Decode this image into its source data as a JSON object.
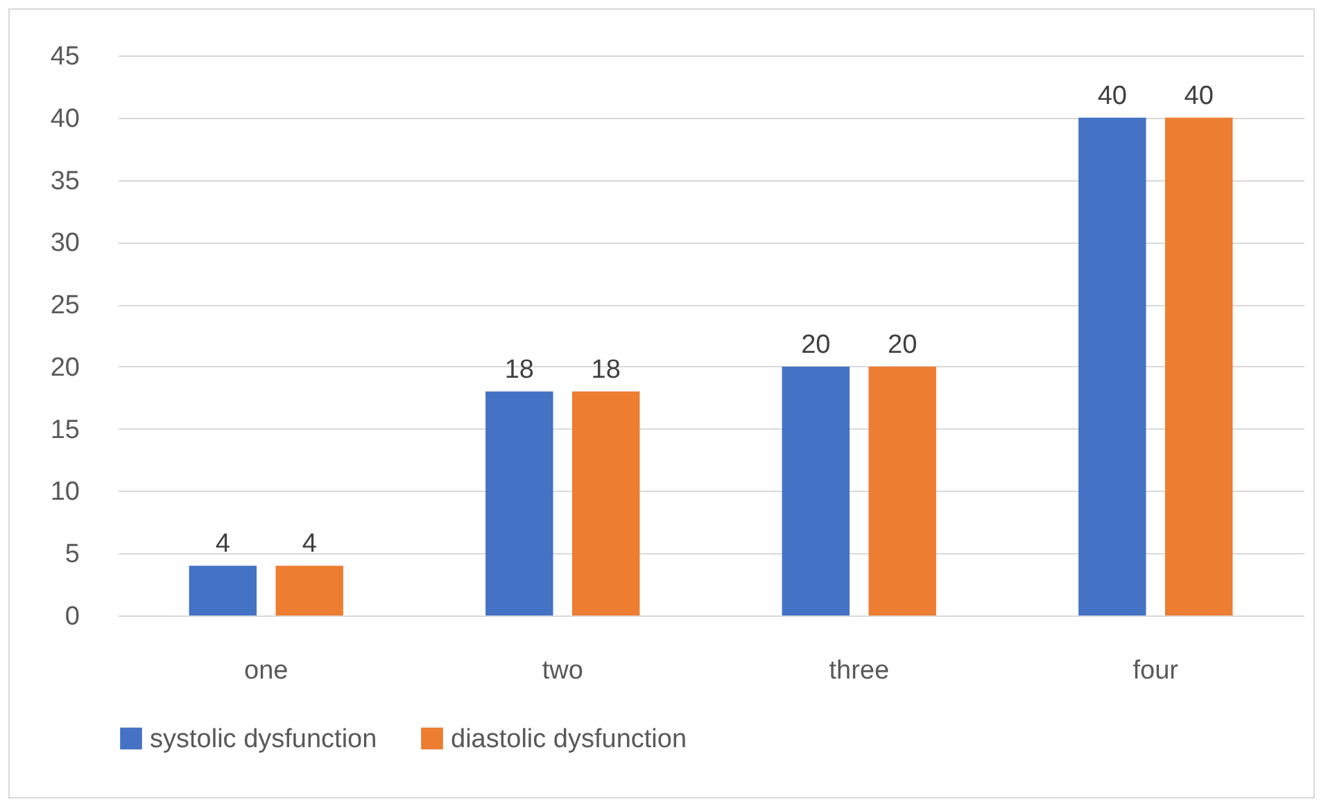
{
  "chart_data": {
    "type": "bar",
    "categories": [
      "one",
      "two",
      "three",
      "four"
    ],
    "series": [
      {
        "name": "systolic dysfunction",
        "color": "#4472c4",
        "values": [
          4,
          18,
          20,
          40
        ]
      },
      {
        "name": "diastolic dysfunction",
        "color": "#ed7d31",
        "values": [
          4,
          18,
          20,
          40
        ]
      }
    ],
    "ylim": [
      0,
      45
    ],
    "yticks": [
      0,
      5,
      10,
      15,
      20,
      25,
      30,
      35,
      40,
      45
    ],
    "grid": "y",
    "legend": "bottom",
    "data_labels": true
  }
}
